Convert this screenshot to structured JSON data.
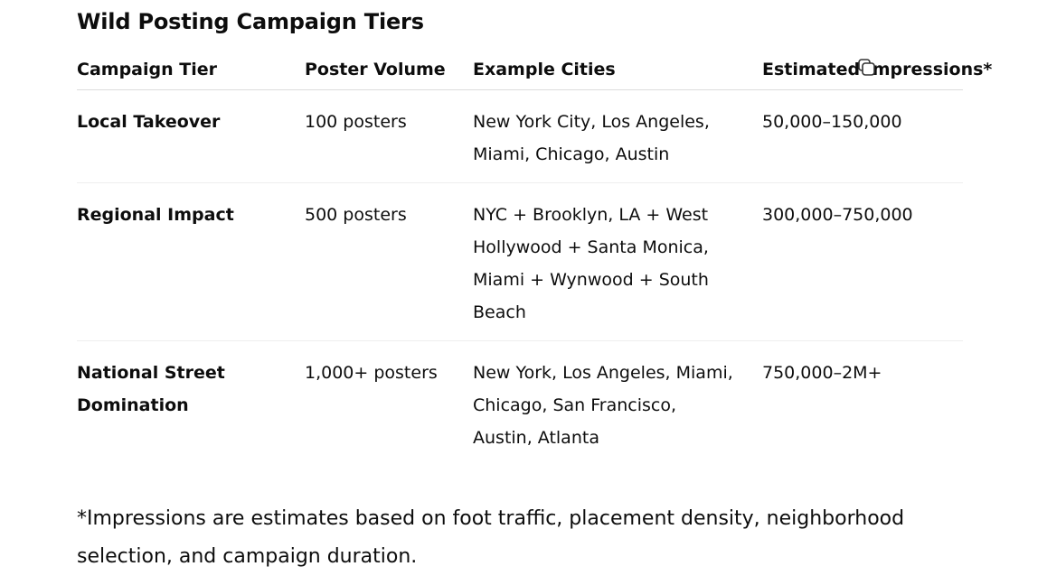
{
  "title": "Wild Posting Campaign Tiers",
  "table": {
    "headers": [
      "Campaign Tier",
      "Poster Volume",
      "Example Cities",
      "Estimated Impressions*"
    ],
    "rows": [
      {
        "tier": "Local Takeover",
        "volume": "100 posters",
        "cities": "New York City, Los Angeles, Miami, Chicago, Austin",
        "impressions": "50,000–150,000"
      },
      {
        "tier": "Regional Impact",
        "volume": "500 posters",
        "cities": "NYC + Brooklyn, LA + West Hollywood + Santa Monica, Miami + Wynwood + South Beach",
        "impressions": "300,000–750,000"
      },
      {
        "tier": "National Street Domination",
        "volume": "1,000+ posters",
        "cities": "New York, Los Angeles, Miami, Chicago, San Francisco, Austin, Atlanta",
        "impressions": "750,000–2M+"
      }
    ]
  },
  "footnote": "*Impressions are estimates based on foot traffic, placement density, neighborhood selection, and campaign duration.",
  "icons": {
    "copy": "copy-icon"
  }
}
